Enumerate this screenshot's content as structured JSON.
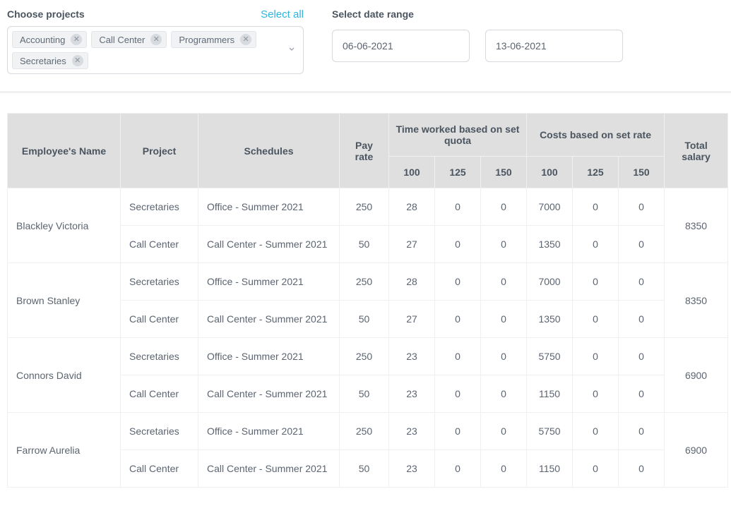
{
  "filters": {
    "projects_label": "Choose projects",
    "select_all": "Select all",
    "projects": [
      "Accounting",
      "Call Center",
      "Programmers",
      "Secretaries"
    ],
    "date_label": "Select date range",
    "date_from": "06-06-2021",
    "date_to": "13-06-2021"
  },
  "table": {
    "headers": {
      "employee": "Employee's Name",
      "project": "Project",
      "schedules": "Schedules",
      "pay_rate": "Pay rate",
      "time_group": "Time worked based on set quota",
      "cost_group": "Costs based on set rate",
      "total": "Total salary",
      "sub_100": "100",
      "sub_125": "125",
      "sub_150": "150"
    },
    "employees": [
      {
        "name": "Blackley Victoria",
        "total": "8350",
        "rows": [
          {
            "project": "Secretaries",
            "schedule": "Office - Summer 2021",
            "pay": "250",
            "t100": "28",
            "t125": "0",
            "t150": "0",
            "c100": "7000",
            "c125": "0",
            "c150": "0"
          },
          {
            "project": "Call Center",
            "schedule": "Call Center - Summer 2021",
            "pay": "50",
            "t100": "27",
            "t125": "0",
            "t150": "0",
            "c100": "1350",
            "c125": "0",
            "c150": "0"
          }
        ]
      },
      {
        "name": "Brown Stanley",
        "total": "8350",
        "rows": [
          {
            "project": "Secretaries",
            "schedule": "Office - Summer 2021",
            "pay": "250",
            "t100": "28",
            "t125": "0",
            "t150": "0",
            "c100": "7000",
            "c125": "0",
            "c150": "0"
          },
          {
            "project": "Call Center",
            "schedule": "Call Center - Summer 2021",
            "pay": "50",
            "t100": "27",
            "t125": "0",
            "t150": "0",
            "c100": "1350",
            "c125": "0",
            "c150": "0"
          }
        ]
      },
      {
        "name": "Connors David",
        "total": "6900",
        "rows": [
          {
            "project": "Secretaries",
            "schedule": "Office - Summer 2021",
            "pay": "250",
            "t100": "23",
            "t125": "0",
            "t150": "0",
            "c100": "5750",
            "c125": "0",
            "c150": "0"
          },
          {
            "project": "Call Center",
            "schedule": "Call Center - Summer 2021",
            "pay": "50",
            "t100": "23",
            "t125": "0",
            "t150": "0",
            "c100": "1150",
            "c125": "0",
            "c150": "0"
          }
        ]
      },
      {
        "name": "Farrow Aurelia",
        "total": "6900",
        "rows": [
          {
            "project": "Secretaries",
            "schedule": "Office - Summer 2021",
            "pay": "250",
            "t100": "23",
            "t125": "0",
            "t150": "0",
            "c100": "5750",
            "c125": "0",
            "c150": "0"
          },
          {
            "project": "Call Center",
            "schedule": "Call Center - Summer 2021",
            "pay": "50",
            "t100": "23",
            "t125": "0",
            "t150": "0",
            "c100": "1150",
            "c125": "0",
            "c150": "0"
          }
        ]
      }
    ]
  }
}
